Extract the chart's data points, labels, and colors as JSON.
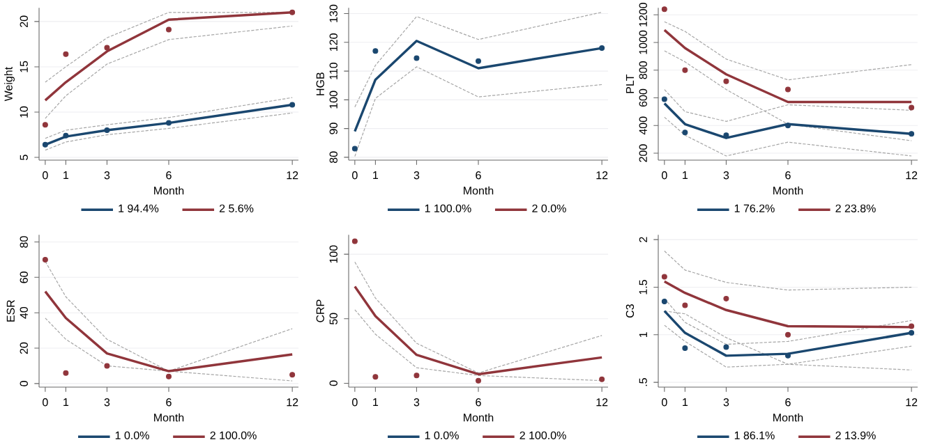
{
  "chart_data": [
    {
      "type": "line",
      "xlabel": "Month",
      "ylabel": "Weight",
      "x": [
        0,
        1,
        3,
        6,
        12
      ],
      "xlim": [
        -0.3,
        12.3
      ],
      "xticks": [
        0,
        1,
        3,
        6,
        12
      ],
      "ylim": [
        4.7,
        21.5
      ],
      "yticks": [
        5,
        10,
        15,
        20
      ],
      "grid": "y",
      "legend": "bottom",
      "series": [
        {
          "color": "#a6a6a6",
          "line_style": "dashed",
          "values": [
            5.8,
            6.7,
            7.5,
            8.2,
            9.9
          ]
        },
        {
          "color": "#a6a6a6",
          "line_style": "dashed",
          "values": [
            7.1,
            8.0,
            8.6,
            9.4,
            11.6
          ]
        },
        {
          "color": "#a6a6a6",
          "line_style": "dashed",
          "values": [
            9.3,
            11.8,
            15.3,
            18.0,
            19.5
          ]
        },
        {
          "color": "#a6a6a6",
          "line_style": "dashed",
          "values": [
            13.3,
            15.0,
            18.2,
            21.0,
            21.0
          ]
        },
        {
          "name": "1 94.4%",
          "color": "#1a476f",
          "values": [
            6.4,
            7.3,
            8.0,
            8.8,
            10.8
          ]
        },
        {
          "name": "2 5.6%",
          "color": "#90353b",
          "values": [
            11.3,
            13.3,
            16.7,
            20.2,
            21.0
          ]
        },
        {
          "type": "scatter",
          "marker": "circle",
          "color": "#1a476f",
          "values": [
            6.4,
            7.4,
            8.0,
            8.8,
            10.8
          ]
        },
        {
          "type": "scatter",
          "marker": "circle",
          "color": "#90353b",
          "values": [
            8.6,
            16.4,
            17.1,
            19.1,
            21.0
          ]
        }
      ]
    },
    {
      "type": "line",
      "xlabel": "Month",
      "ylabel": "HGB",
      "x": [
        0,
        1,
        3,
        6,
        12
      ],
      "xlim": [
        -0.3,
        12.3
      ],
      "xticks": [
        0,
        1,
        3,
        6,
        12
      ],
      "ylim": [
        79,
        132
      ],
      "yticks": [
        80,
        90,
        100,
        110,
        120,
        130
      ],
      "grid": "y",
      "legend": "bottom",
      "series": [
        {
          "color": "#a6a6a6",
          "line_style": "dashed",
          "values": [
            80.3,
            100.5,
            111.5,
            101,
            105.3
          ]
        },
        {
          "color": "#a6a6a6",
          "line_style": "dashed",
          "values": [
            97.5,
            112,
            129,
            121,
            130.5
          ]
        },
        {
          "name": "1 100.0%",
          "color": "#1a476f",
          "values": [
            89,
            107,
            120.5,
            111,
            118
          ]
        },
        {
          "name": "2 0.0%",
          "color": "#90353b",
          "values": [
            null,
            null,
            null,
            null,
            null
          ]
        },
        {
          "type": "scatter",
          "marker": "circle",
          "color": "#1a476f",
          "values": [
            83,
            117,
            114.5,
            113.5,
            118
          ]
        }
      ]
    },
    {
      "type": "line",
      "xlabel": "Month",
      "ylabel": "PLT",
      "x": [
        0,
        1,
        3,
        6,
        12
      ],
      "xlim": [
        -0.3,
        12.3
      ],
      "xticks": [
        0,
        1,
        3,
        6,
        12
      ],
      "ylim": [
        150,
        1250
      ],
      "yticks": [
        200,
        400,
        600,
        800,
        1000,
        1200
      ],
      "grid": "y",
      "legend": "bottom",
      "series": [
        {
          "color": "#a6a6a6",
          "line_style": "dashed",
          "values": [
            460,
            330,
            180,
            280,
            180
          ]
        },
        {
          "color": "#a6a6a6",
          "line_style": "dashed",
          "values": [
            660,
            500,
            430,
            550,
            510
          ]
        },
        {
          "color": "#a6a6a6",
          "line_style": "dashed",
          "values": [
            940,
            860,
            660,
            410,
            290
          ]
        },
        {
          "color": "#a6a6a6",
          "line_style": "dashed",
          "values": [
            1150,
            1080,
            880,
            730,
            840
          ]
        },
        {
          "name": "1 76.2%",
          "color": "#1a476f",
          "values": [
            560,
            410,
            310,
            410,
            340
          ]
        },
        {
          "name": "2 23.8%",
          "color": "#90353b",
          "values": [
            1090,
            960,
            770,
            570,
            570
          ]
        },
        {
          "type": "scatter",
          "marker": "circle",
          "color": "#1a476f",
          "values": [
            590,
            350,
            330,
            400,
            340
          ]
        },
        {
          "type": "scatter",
          "marker": "circle",
          "color": "#90353b",
          "values": [
            1240,
            800,
            720,
            660,
            530
          ]
        }
      ]
    },
    {
      "type": "line",
      "xlabel": "Month",
      "ylabel": "ESR",
      "x": [
        0,
        1,
        3,
        6,
        12
      ],
      "xlim": [
        -0.3,
        12.3
      ],
      "xticks": [
        0,
        1,
        3,
        6,
        12
      ],
      "ylim": [
        -2,
        84
      ],
      "yticks": [
        0,
        20,
        40,
        60,
        80
      ],
      "grid": "y",
      "legend": "bottom",
      "series": [
        {
          "color": "#a6a6a6",
          "line_style": "dashed",
          "values": [
            37,
            25,
            10,
            7,
            1.5
          ]
        },
        {
          "color": "#a6a6a6",
          "line_style": "dashed",
          "values": [
            69,
            49,
            25,
            7,
            31
          ]
        },
        {
          "name": "1 0.0%",
          "color": "#1a476f",
          "values": [
            null,
            null,
            null,
            null,
            null
          ]
        },
        {
          "name": "2 100.0%",
          "color": "#90353b",
          "values": [
            52,
            37,
            17,
            7,
            16.5
          ]
        },
        {
          "type": "scatter",
          "marker": "circle",
          "color": "#90353b",
          "values": [
            70,
            6,
            10,
            4,
            5
          ]
        }
      ]
    },
    {
      "type": "line",
      "xlabel": "Month",
      "ylabel": "CRP",
      "x": [
        0,
        1,
        3,
        6,
        12
      ],
      "xlim": [
        -0.3,
        12.3
      ],
      "xticks": [
        0,
        1,
        3,
        6,
        12
      ],
      "ylim": [
        -3,
        115
      ],
      "yticks": [
        0,
        50,
        100
      ],
      "grid": "y",
      "legend": "bottom",
      "series": [
        {
          "color": "#a6a6a6",
          "line_style": "dashed",
          "values": [
            57,
            38,
            12,
            6,
            2
          ]
        },
        {
          "color": "#a6a6a6",
          "line_style": "dashed",
          "values": [
            94,
            66,
            31,
            8,
            37
          ]
        },
        {
          "name": "1 0.0%",
          "color": "#1a476f",
          "values": [
            null,
            null,
            null,
            null,
            null
          ]
        },
        {
          "name": "2 100.0%",
          "color": "#90353b",
          "values": [
            75,
            52,
            22,
            7,
            20
          ]
        },
        {
          "type": "scatter",
          "marker": "circle",
          "color": "#90353b",
          "values": [
            110,
            5,
            6,
            2,
            3
          ]
        }
      ]
    },
    {
      "type": "line",
      "xlabel": "Month",
      "ylabel": "C3",
      "x": [
        0,
        1,
        3,
        6,
        12
      ],
      "xlim": [
        -0.3,
        12.3
      ],
      "xticks": [
        0,
        1,
        3,
        6,
        12
      ],
      "ylim": [
        0.45,
        2.05
      ],
      "yticks": [
        {
          "value": 0.5,
          "label": ".5"
        },
        1,
        1.5,
        2
      ],
      "grid": "y",
      "legend": "bottom",
      "series": [
        {
          "color": "#a6a6a6",
          "line_style": "dashed",
          "values": [
            1.1,
            0.93,
            0.66,
            0.69,
            0.88
          ]
        },
        {
          "color": "#a6a6a6",
          "line_style": "dashed",
          "values": [
            1.38,
            1.13,
            0.9,
            0.93,
            1.15
          ]
        },
        {
          "color": "#a6a6a6",
          "line_style": "dashed",
          "values": [
            1.25,
            1.22,
            0.97,
            0.69,
            0.63
          ]
        },
        {
          "color": "#a6a6a6",
          "line_style": "dashed",
          "values": [
            1.88,
            1.68,
            1.55,
            1.47,
            1.5
          ]
        },
        {
          "name": "1 86.1%",
          "color": "#1a476f",
          "values": [
            1.25,
            1.02,
            0.78,
            0.8,
            1.02
          ]
        },
        {
          "name": "2 13.9%",
          "color": "#90353b",
          "values": [
            1.56,
            1.44,
            1.26,
            1.09,
            1.08
          ]
        },
        {
          "type": "scatter",
          "marker": "circle",
          "color": "#1a476f",
          "values": [
            1.35,
            0.86,
            0.87,
            0.78,
            1.02
          ]
        },
        {
          "type": "scatter",
          "marker": "circle",
          "color": "#90353b",
          "values": [
            1.61,
            1.31,
            1.38,
            1.0,
            1.09
          ]
        }
      ]
    }
  ]
}
